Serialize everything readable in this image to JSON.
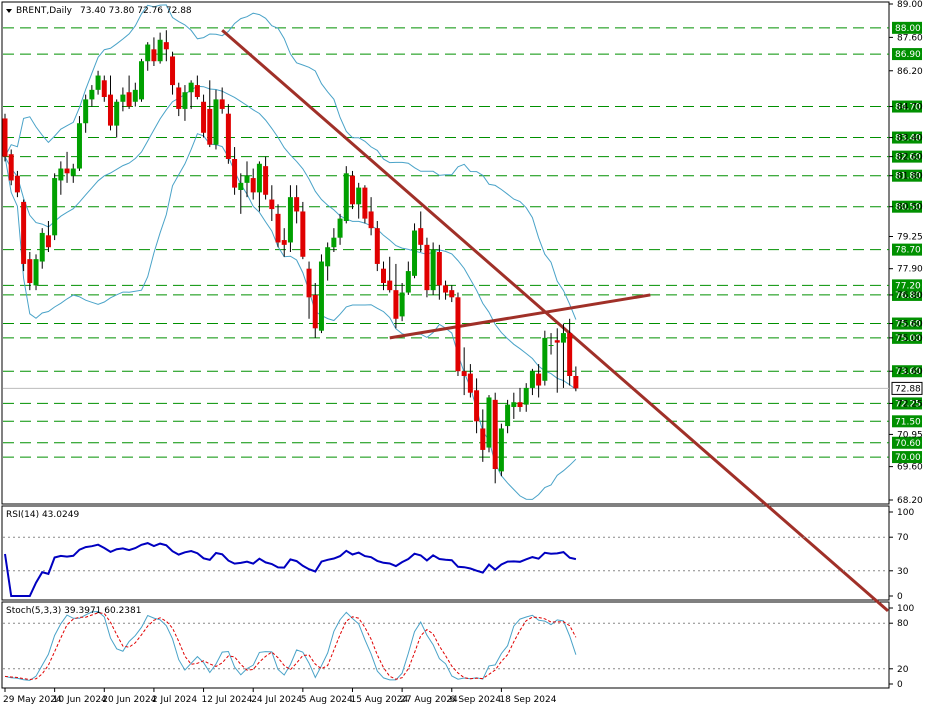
{
  "colors": {
    "bull": "#00a000",
    "bear": "#e00000",
    "band": "#4aa3c8",
    "trend": "#a03028",
    "level": "#009000",
    "rsi": "#0000c0",
    "stoch_main": "#4aa3c8",
    "stoch_signal": "#e00000",
    "grid": "#888888"
  },
  "chart_data": [
    {
      "type": "candlestick",
      "symbol_label": "BRENT,Daily",
      "ohlc_label": "73.40 73.80 72.76 72.88",
      "ylim": [
        68.2,
        89.0
      ],
      "y_ticks": [
        "89.00",
        "87.60",
        "86.20",
        "84.70",
        "83.40",
        "82.60",
        "81.80",
        "80.50",
        "79.25",
        "77.90",
        "76.80",
        "75.60",
        "75.00",
        "73.60",
        "72.25",
        "70.95",
        "69.60",
        "68.20"
      ],
      "level_labels": [
        "88.00",
        "86.90",
        "84.70",
        "83.40",
        "82.60",
        "81.80",
        "80.50",
        "78.70",
        "77.20",
        "76.80",
        "75.60",
        "75.00",
        "73.60",
        "72.25",
        "71.50",
        "70.60",
        "70.00"
      ],
      "current_price": "72.88",
      "x_labels": [
        "29 May 2024",
        "10 Jun 2024",
        "20 Jun 2024",
        "2 Jul 2024",
        "12 Jul 2024",
        "24 Jul 2024",
        "5 Aug 2024",
        "15 Aug 2024",
        "27 Aug 2024",
        "6 Sep 2024",
        "18 Sep 2024"
      ],
      "candles": [
        [
          84.2,
          84.4,
          82.4,
          82.6
        ],
        [
          82.7,
          82.9,
          81.4,
          81.6
        ],
        [
          81.8,
          82.0,
          80.9,
          81.1
        ],
        [
          80.7,
          80.8,
          77.8,
          78.1
        ],
        [
          78.3,
          78.6,
          77.0,
          77.3
        ],
        [
          77.2,
          78.5,
          77.0,
          78.3
        ],
        [
          78.2,
          79.6,
          77.9,
          79.4
        ],
        [
          79.3,
          79.9,
          78.6,
          78.8
        ],
        [
          79.3,
          81.9,
          79.1,
          81.7
        ],
        [
          81.6,
          82.4,
          81.0,
          82.1
        ],
        [
          82.1,
          82.8,
          81.5,
          81.9
        ],
        [
          81.8,
          82.3,
          81.5,
          82.1
        ],
        [
          82.1,
          84.3,
          82.0,
          84.0
        ],
        [
          84.0,
          85.2,
          83.6,
          85.0
        ],
        [
          85.0,
          85.6,
          84.7,
          85.4
        ],
        [
          85.4,
          86.2,
          85.2,
          86.0
        ],
        [
          85.8,
          86.0,
          84.9,
          85.1
        ],
        [
          85.2,
          86.0,
          83.7,
          83.9
        ],
        [
          83.9,
          85.0,
          83.4,
          84.9
        ],
        [
          84.9,
          85.5,
          84.5,
          85.2
        ],
        [
          85.3,
          86.0,
          84.6,
          84.7
        ],
        [
          84.9,
          85.7,
          84.7,
          85.4
        ],
        [
          85.0,
          86.7,
          84.9,
          86.6
        ],
        [
          86.6,
          87.4,
          86.2,
          87.3
        ],
        [
          87.1,
          87.6,
          86.4,
          86.6
        ],
        [
          86.6,
          87.8,
          86.5,
          87.5
        ],
        [
          87.4,
          87.9,
          86.6,
          87.1
        ],
        [
          86.8,
          87.0,
          85.2,
          85.6
        ],
        [
          85.5,
          85.7,
          84.3,
          84.6
        ],
        [
          84.6,
          85.6,
          84.1,
          85.3
        ],
        [
          85.3,
          85.8,
          84.6,
          85.7
        ],
        [
          85.6,
          86.0,
          85.0,
          85.1
        ],
        [
          84.9,
          85.2,
          83.4,
          83.6
        ],
        [
          84.6,
          85.8,
          83.0,
          83.1
        ],
        [
          83.1,
          85.4,
          82.9,
          85.0
        ],
        [
          85.0,
          85.5,
          84.4,
          84.6
        ],
        [
          84.4,
          84.8,
          82.3,
          82.5
        ],
        [
          82.5,
          83.0,
          81.0,
          81.3
        ],
        [
          81.2,
          81.9,
          80.2,
          81.5
        ],
        [
          81.5,
          82.4,
          80.9,
          81.8
        ],
        [
          81.7,
          82.1,
          80.8,
          81.1
        ],
        [
          81.1,
          82.4,
          80.3,
          82.3
        ],
        [
          82.2,
          82.6,
          80.8,
          81.0
        ],
        [
          80.8,
          81.4,
          79.9,
          80.4
        ],
        [
          80.2,
          80.6,
          78.8,
          79.0
        ],
        [
          79.1,
          79.6,
          78.4,
          78.9
        ],
        [
          79.0,
          81.4,
          78.6,
          80.9
        ],
        [
          80.9,
          81.4,
          79.8,
          80.3
        ],
        [
          80.3,
          80.7,
          78.3,
          78.4
        ],
        [
          77.9,
          78.2,
          75.8,
          76.7
        ],
        [
          76.8,
          77.3,
          75.0,
          75.4
        ],
        [
          75.3,
          78.5,
          75.2,
          78.2
        ],
        [
          78.0,
          79.0,
          77.4,
          78.8
        ],
        [
          78.8,
          79.6,
          78.6,
          79.2
        ],
        [
          79.2,
          80.2,
          78.9,
          80.0
        ],
        [
          79.9,
          82.2,
          79.8,
          81.9
        ],
        [
          81.8,
          82.0,
          80.4,
          80.6
        ],
        [
          80.6,
          81.5,
          80.0,
          81.3
        ],
        [
          81.3,
          81.4,
          79.8,
          80.0
        ],
        [
          80.3,
          80.9,
          79.3,
          79.6
        ],
        [
          79.6,
          79.9,
          77.8,
          78.1
        ],
        [
          77.9,
          78.2,
          77.0,
          77.3
        ],
        [
          77.4,
          78.4,
          76.9,
          77.0
        ],
        [
          77.0,
          78.1,
          75.4,
          75.8
        ],
        [
          75.9,
          77.3,
          75.7,
          76.9
        ],
        [
          76.9,
          78.2,
          76.8,
          77.8
        ],
        [
          77.6,
          79.8,
          77.5,
          79.5
        ],
        [
          79.6,
          80.3,
          78.6,
          78.9
        ],
        [
          78.9,
          79.2,
          76.7,
          77.0
        ],
        [
          77.0,
          79.0,
          76.8,
          78.7
        ],
        [
          78.6,
          78.9,
          76.6,
          77.2
        ],
        [
          77.2,
          77.4,
          76.6,
          76.9
        ],
        [
          77.0,
          77.2,
          76.5,
          76.7
        ],
        [
          76.7,
          76.9,
          73.4,
          73.6
        ],
        [
          73.6,
          74.6,
          72.6,
          73.4
        ],
        [
          73.5,
          73.9,
          72.5,
          72.7
        ],
        [
          72.8,
          73.3,
          71.0,
          71.5
        ],
        [
          71.2,
          72.0,
          69.8,
          70.3
        ],
        [
          70.4,
          72.6,
          70.2,
          72.5
        ],
        [
          72.4,
          72.7,
          68.9,
          69.5
        ],
        [
          69.4,
          71.4,
          69.2,
          71.2
        ],
        [
          71.3,
          72.4,
          71.0,
          72.2
        ],
        [
          72.1,
          72.7,
          71.6,
          72.3
        ],
        [
          72.3,
          72.9,
          71.9,
          72.1
        ],
        [
          72.2,
          73.1,
          71.9,
          72.9
        ],
        [
          72.9,
          73.7,
          72.6,
          73.6
        ],
        [
          73.5,
          73.9,
          72.5,
          73.0
        ],
        [
          73.2,
          75.3,
          73.0,
          75.0
        ],
        [
          74.7,
          75.2,
          74.3,
          74.7
        ],
        [
          74.9,
          75.4,
          72.7,
          74.8
        ],
        [
          74.8,
          75.6,
          72.9,
          75.2
        ],
        [
          75.2,
          75.8,
          73.0,
          73.4
        ],
        [
          73.4,
          73.8,
          72.76,
          72.88
        ]
      ]
    },
    {
      "type": "line",
      "title": "RSI(14) 43.0249",
      "ylim": [
        0,
        100
      ],
      "y_ticks": [
        "100",
        "70",
        "30",
        "0"
      ]
    },
    {
      "type": "line",
      "title": "Stoch(5,3,3) 39.3971 60.2381",
      "ylim": [
        0,
        100
      ],
      "y_ticks": [
        "100",
        "80",
        "20",
        "0"
      ]
    }
  ]
}
